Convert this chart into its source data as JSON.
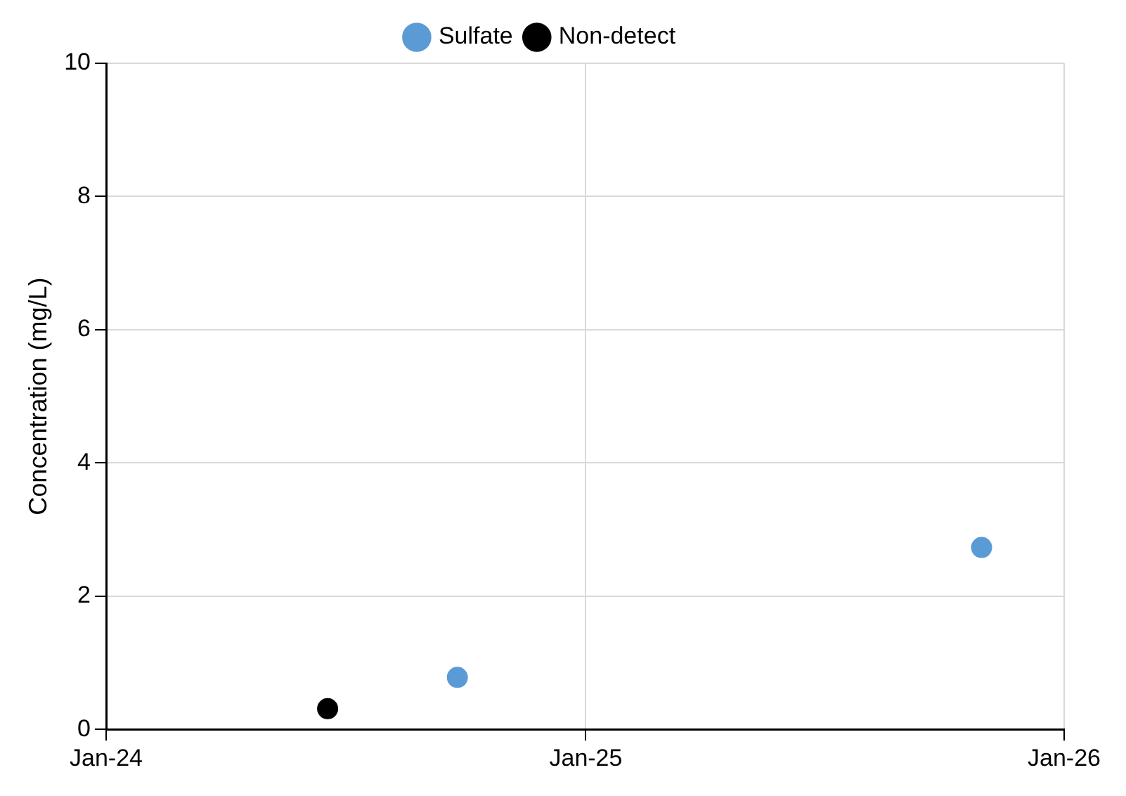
{
  "chart_data": {
    "type": "scatter",
    "ylabel": "Concentration (mg/L)",
    "xlim": [
      "2024-01-01",
      "2026-01-01"
    ],
    "xticks": [
      {
        "value": "2024-01-01",
        "label": "Jan-24"
      },
      {
        "value": "2025-01-01",
        "label": "Jan-25"
      },
      {
        "value": "2026-01-01",
        "label": "Jan-26"
      }
    ],
    "ylim": [
      0,
      10
    ],
    "yticks": [
      0,
      2,
      4,
      6,
      8,
      10
    ],
    "grid": true,
    "legend": "top",
    "marker": "circle",
    "series": [
      {
        "name": "Sulfate",
        "color": "#5b9bd5",
        "x": [
          "2024-09-25",
          "2025-10-30"
        ],
        "values": [
          0.78,
          2.73
        ]
      },
      {
        "name": "Non-detect",
        "color": "#000000",
        "x": [
          "2024-06-18"
        ],
        "values": [
          0.31
        ]
      }
    ]
  }
}
